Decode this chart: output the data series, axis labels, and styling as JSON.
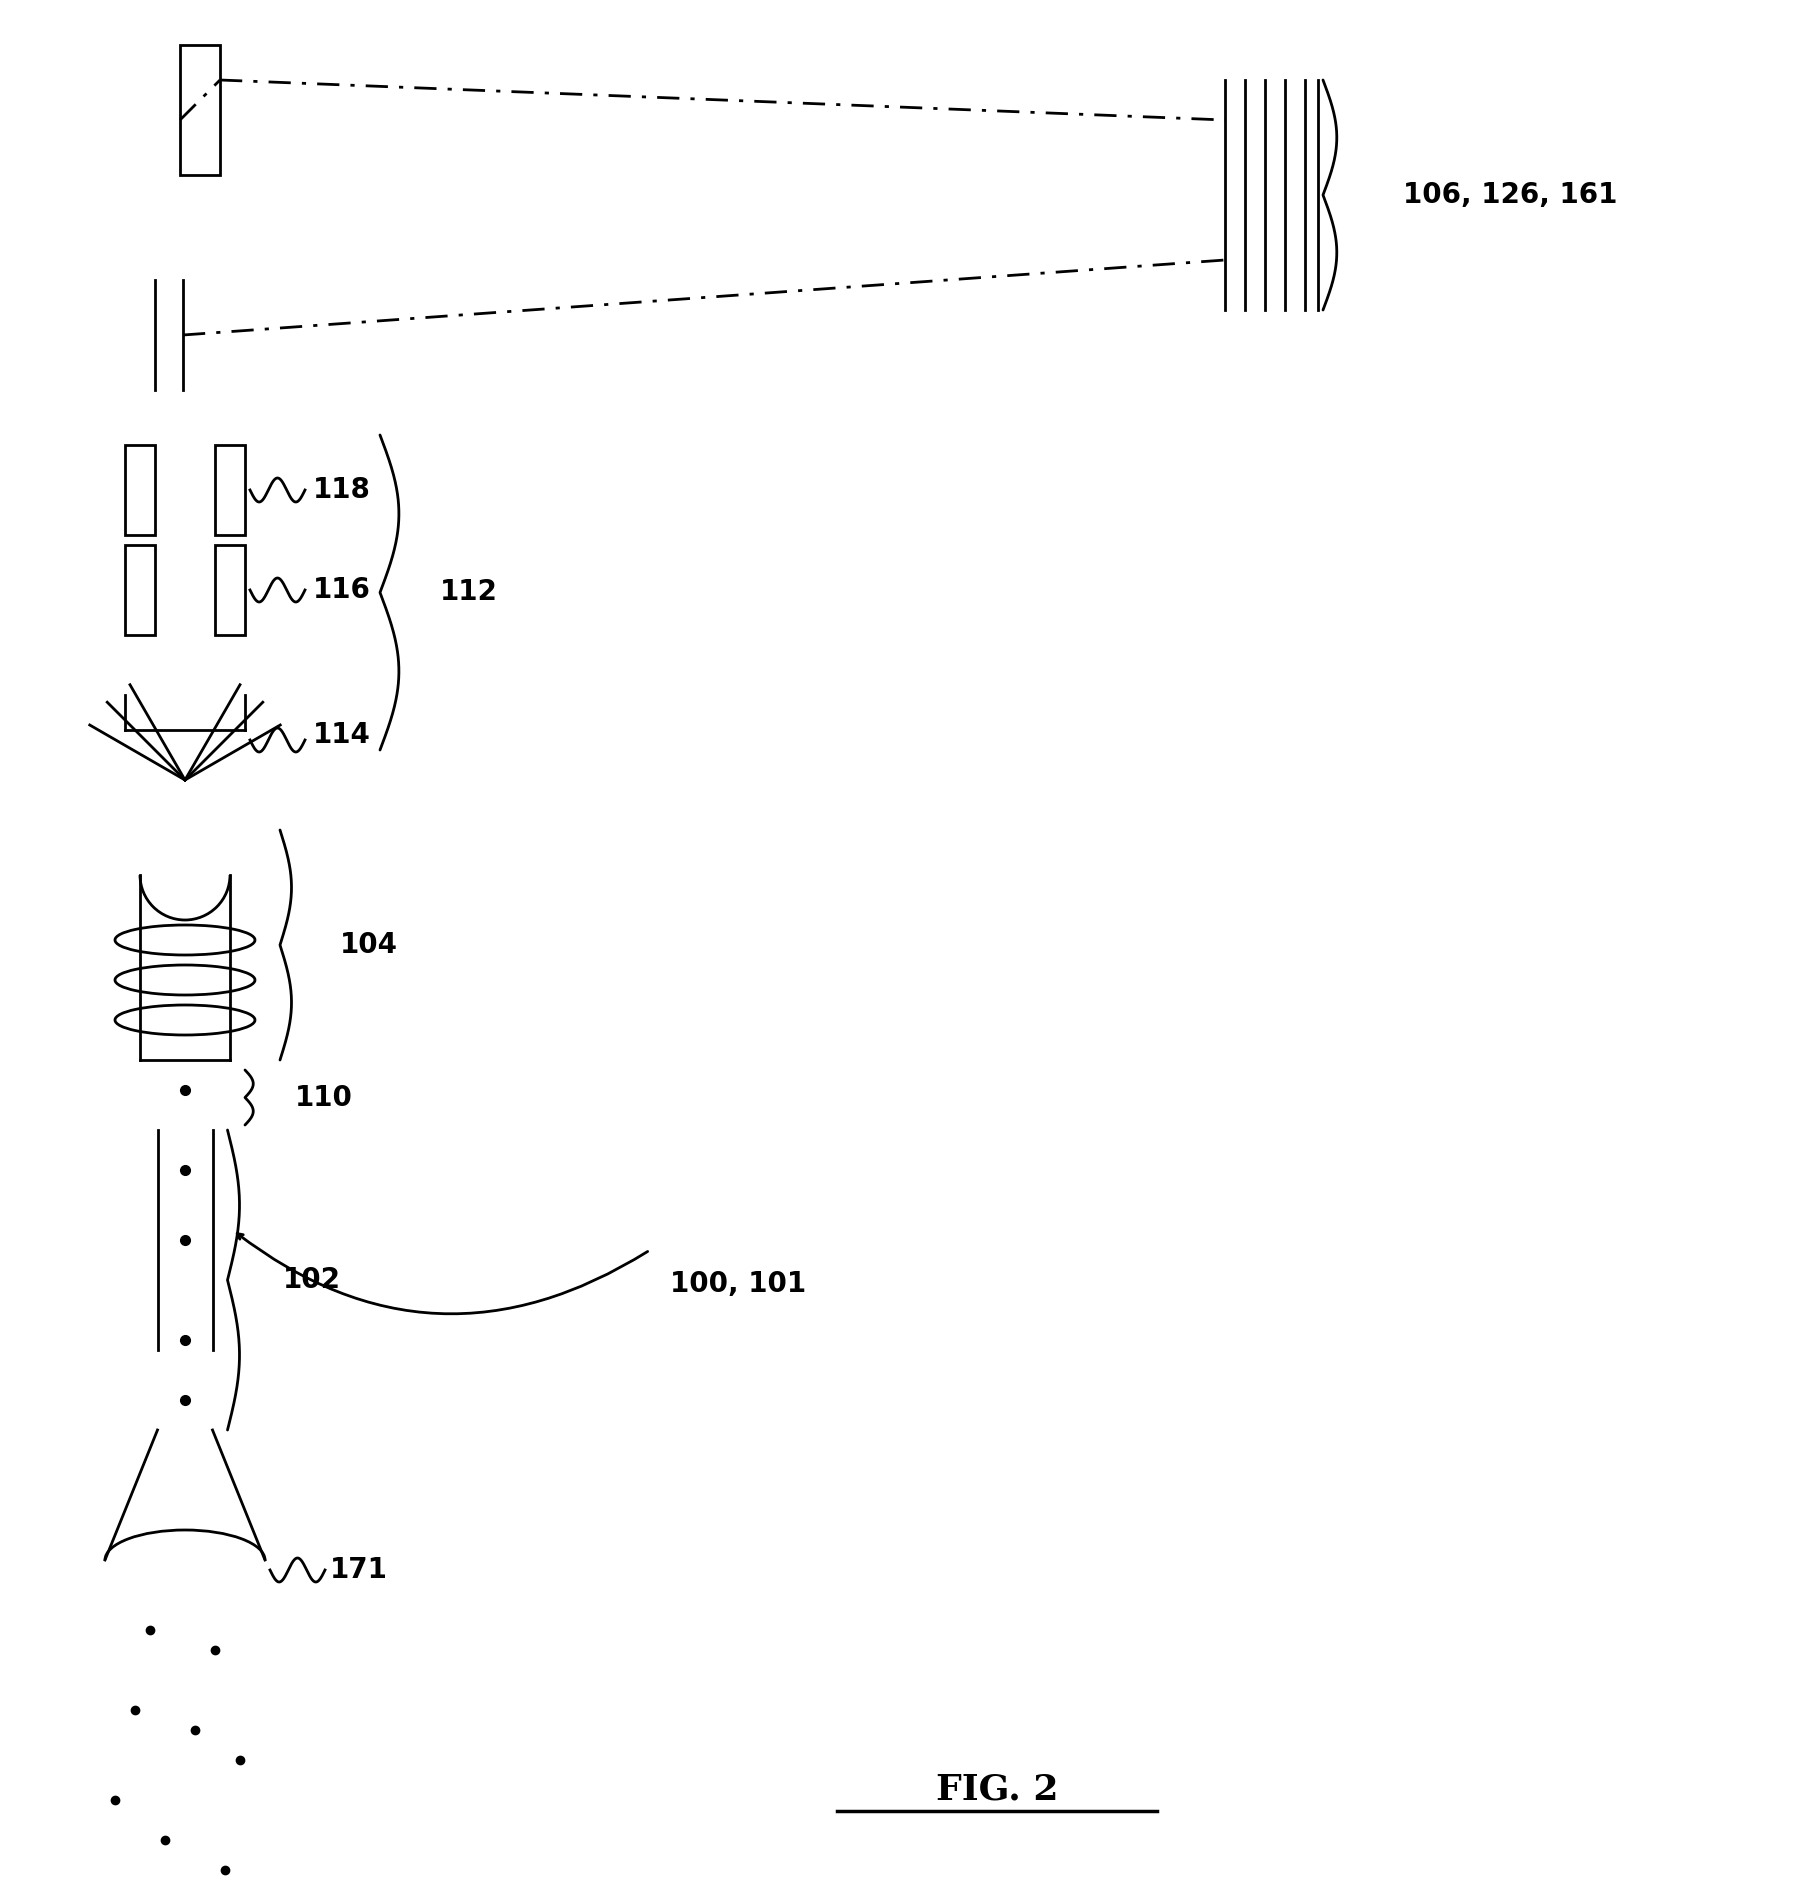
{
  "fig_label": "FIG. 2",
  "bg_color": "#ffffff",
  "line_color": "#000000",
  "labels": {
    "106_126_161": "106, 126, 161",
    "118": "118",
    "116": "116",
    "114": "114",
    "112": "112",
    "104": "104",
    "110": "110",
    "102": "102",
    "100_101": "100, 101",
    "171": "171"
  },
  "figsize": [
    17.94,
    18.84
  ],
  "dpi": 100
}
